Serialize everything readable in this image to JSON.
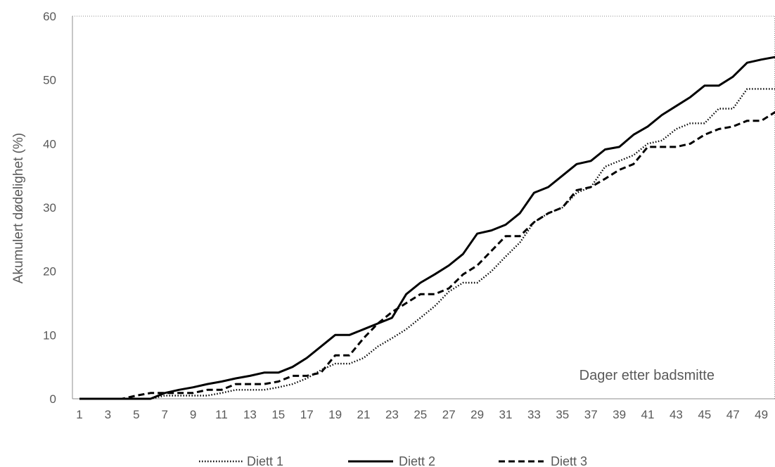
{
  "chart_data": {
    "type": "line",
    "ylabel": "Akumulert dødelighet (%)",
    "xlabel": "",
    "annotation": "Dager etter badsmitte",
    "ylim": [
      0,
      60
    ],
    "yticks": [
      0,
      10,
      20,
      30,
      40,
      50,
      60
    ],
    "x": [
      1,
      2,
      3,
      4,
      5,
      6,
      7,
      8,
      9,
      10,
      11,
      12,
      13,
      14,
      15,
      16,
      17,
      18,
      19,
      20,
      21,
      22,
      23,
      24,
      25,
      26,
      27,
      28,
      29,
      30,
      31,
      32,
      33,
      34,
      35,
      36,
      37,
      38,
      39,
      40,
      41,
      42,
      43,
      44,
      45,
      46,
      47,
      48,
      49,
      50
    ],
    "xtick_labels": [
      "1",
      "3",
      "5",
      "7",
      "9",
      "11",
      "13",
      "15",
      "17",
      "19",
      "21",
      "23",
      "25",
      "27",
      "29",
      "31",
      "33",
      "35",
      "37",
      "39",
      "41",
      "43",
      "45",
      "47",
      "49"
    ],
    "grid": false,
    "legend_position": "bottom",
    "series": [
      {
        "name": "Diett 1",
        "style": "dotted",
        "values": [
          0,
          0,
          0,
          0,
          0,
          0,
          0.5,
          0.5,
          0.5,
          0.5,
          0.9,
          1.4,
          1.4,
          1.4,
          1.8,
          2.3,
          3.2,
          4.5,
          5.5,
          5.5,
          6.4,
          8.2,
          9.5,
          10.9,
          12.7,
          14.5,
          16.8,
          18.2,
          18.2,
          20.0,
          22.3,
          24.5,
          27.7,
          29.1,
          30.0,
          32.3,
          33.2,
          36.4,
          37.3,
          38.2,
          40.0,
          40.5,
          42.3,
          43.2,
          43.2,
          45.5,
          45.5,
          48.6,
          48.6,
          48.6
        ]
      },
      {
        "name": "Diett 2",
        "style": "solid",
        "values": [
          0,
          0,
          0,
          0,
          0,
          0,
          0.9,
          1.4,
          1.8,
          2.3,
          2.7,
          3.2,
          3.6,
          4.1,
          4.1,
          5.0,
          6.4,
          8.2,
          10.0,
          10.0,
          10.9,
          11.8,
          12.7,
          16.4,
          18.2,
          19.5,
          20.9,
          22.7,
          25.9,
          26.4,
          27.3,
          29.1,
          32.3,
          33.2,
          35.0,
          36.8,
          37.3,
          39.1,
          39.5,
          41.4,
          42.7,
          44.5,
          45.9,
          47.3,
          49.1,
          49.1,
          50.5,
          52.7,
          53.2,
          53.6
        ]
      },
      {
        "name": "Diett 3",
        "style": "dashed",
        "values": [
          0,
          0,
          0,
          0,
          0.5,
          0.9,
          0.9,
          0.9,
          0.9,
          1.4,
          1.4,
          2.3,
          2.3,
          2.3,
          2.7,
          3.6,
          3.6,
          4.1,
          6.8,
          6.8,
          9.5,
          11.8,
          13.6,
          15.0,
          16.4,
          16.4,
          17.3,
          19.5,
          20.9,
          23.2,
          25.5,
          25.5,
          27.7,
          29.1,
          30.0,
          32.7,
          33.2,
          34.5,
          35.9,
          36.8,
          39.5,
          39.5,
          39.5,
          40.0,
          41.4,
          42.3,
          42.7,
          43.6,
          43.6,
          45.0
        ]
      }
    ]
  }
}
